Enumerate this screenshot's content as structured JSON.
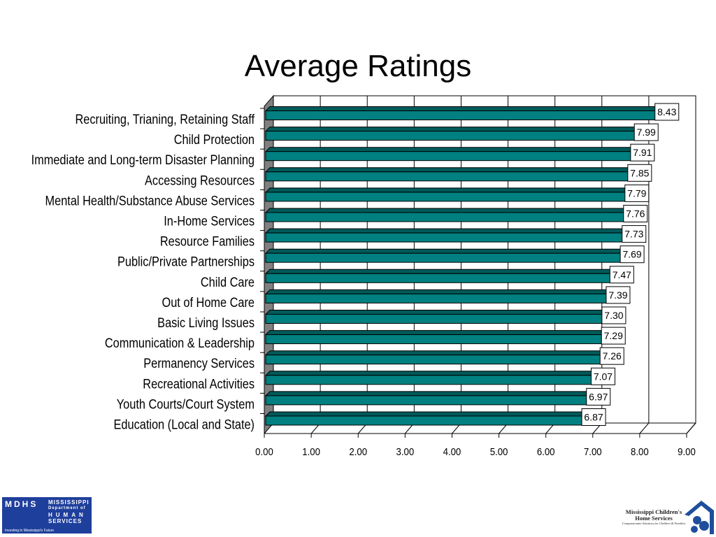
{
  "chart_data": {
    "type": "bar",
    "orientation": "horizontal",
    "style": "3d",
    "title": "Average Ratings",
    "categories": [
      "Recruiting, Trianing, Retaining Staff",
      "Child Protection",
      "Immediate and Long-term Disaster Planning",
      "Accessing Resources",
      "Mental Health/Substance Abuse Services",
      "In-Home Services",
      "Resource Families",
      "Public/Private Partnerships",
      "Child Care",
      "Out of Home Care",
      "Basic Living Issues",
      "Communication & Leadership",
      "Permanency Services",
      "Recreational Activities",
      "Youth Courts/Court System",
      "Education (Local and State)"
    ],
    "values": [
      8.43,
      7.99,
      7.91,
      7.85,
      7.79,
      7.76,
      7.73,
      7.69,
      7.47,
      7.39,
      7.3,
      7.29,
      7.26,
      7.07,
      6.97,
      6.87
    ],
    "value_labels": [
      "8.43",
      "7.99",
      "7.91",
      "7.85",
      "7.79",
      "7.76",
      "7.73",
      "7.69",
      "7.47",
      "7.39",
      "7.30",
      "7.29",
      "7.26",
      "7.07",
      "6.97",
      "6.87"
    ],
    "xlim": [
      0,
      9
    ],
    "xticks": [
      "0.00",
      "1.00",
      "2.00",
      "3.00",
      "4.00",
      "5.00",
      "6.00",
      "7.00",
      "8.00",
      "9.00"
    ],
    "grid": true,
    "colors": {
      "bar": "#008080",
      "bar_top": "#005a5a",
      "side_wall": "#808080"
    }
  },
  "logos": {
    "left": {
      "abbr": "MDHS",
      "lines": [
        "MISSISSIPPI",
        "Department of",
        "HUMAN",
        "SERVICES"
      ],
      "tagline": "Investing in Mississippi's Future"
    },
    "right": {
      "name1": "Mississippi Children's",
      "name2": "Home Services",
      "tagline": "Compassionate Solutions for Children & Families"
    }
  }
}
